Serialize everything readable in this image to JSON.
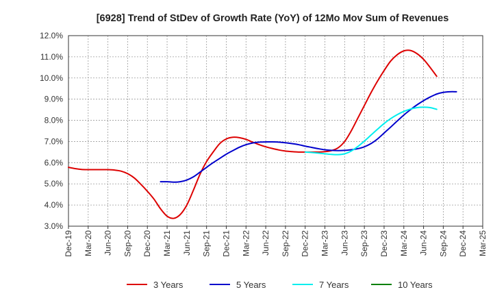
{
  "chart_data": {
    "type": "line",
    "title": "[6928]  Trend of StDev of Growth Rate (YoY) of 12Mo Mov Sum of Revenues",
    "xlabel": "",
    "ylabel": "",
    "ylim": [
      3.0,
      12.0
    ],
    "y_ticks": [
      3.0,
      4.0,
      5.0,
      6.0,
      7.0,
      8.0,
      9.0,
      10.0,
      11.0,
      12.0
    ],
    "y_tick_labels": [
      "3.0%",
      "4.0%",
      "5.0%",
      "6.0%",
      "7.0%",
      "8.0%",
      "9.0%",
      "10.0%",
      "11.0%",
      "12.0%"
    ],
    "x_tick_labels": [
      "Dec-19",
      "Mar-20",
      "Jun-20",
      "Sep-20",
      "Dec-20",
      "Mar-21",
      "Jun-21",
      "Sep-21",
      "Dec-21",
      "Mar-22",
      "Jun-22",
      "Sep-22",
      "Dec-22",
      "Mar-23",
      "Jun-23",
      "Sep-23",
      "Dec-23",
      "Mar-24",
      "Jun-24",
      "Sep-24",
      "Dec-24",
      "Mar-25"
    ],
    "grid": true,
    "legend_position": "bottom",
    "series": [
      {
        "name": "3 Years",
        "color": "#dd0000",
        "start_index": 0,
        "values": [
          5.78,
          5.72,
          5.68,
          5.67,
          5.67,
          5.67,
          5.67,
          5.65,
          5.6,
          5.48,
          5.28,
          4.98,
          4.65,
          4.28,
          3.82,
          3.47,
          3.37,
          3.55,
          4.0,
          4.7,
          5.45,
          6.05,
          6.5,
          6.9,
          7.12,
          7.2,
          7.18,
          7.1,
          6.97,
          6.85,
          6.75,
          6.67,
          6.6,
          6.55,
          6.52,
          6.5,
          6.5,
          6.5,
          6.5,
          6.52,
          6.57,
          6.7,
          7.0,
          7.5,
          8.1,
          8.7,
          9.3,
          9.85,
          10.35,
          10.8,
          11.1,
          11.28,
          11.3,
          11.15,
          10.88,
          10.5,
          10.08
        ]
      },
      {
        "name": "5 Years",
        "color": "#0000cc",
        "start_index": 14,
        "values": [
          5.1,
          5.1,
          5.08,
          5.1,
          5.18,
          5.33,
          5.55,
          5.78,
          6.0,
          6.2,
          6.4,
          6.57,
          6.73,
          6.85,
          6.93,
          6.97,
          6.98,
          6.98,
          6.97,
          6.94,
          6.9,
          6.85,
          6.78,
          6.72,
          6.66,
          6.61,
          6.58,
          6.57,
          6.58,
          6.61,
          6.66,
          6.75,
          6.9,
          7.12,
          7.4,
          7.68,
          7.97,
          8.25,
          8.5,
          8.73,
          8.93,
          9.1,
          9.24,
          9.32,
          9.35,
          9.35
        ]
      },
      {
        "name": "7 Years",
        "color": "#00eeee",
        "start_index": 36,
        "values": [
          6.5,
          6.48,
          6.45,
          6.42,
          6.39,
          6.38,
          6.42,
          6.55,
          6.76,
          7.02,
          7.3,
          7.58,
          7.85,
          8.08,
          8.27,
          8.42,
          8.53,
          8.6,
          8.62,
          8.6,
          8.52
        ]
      },
      {
        "name": "10 Years",
        "color": "#008000",
        "start_index": 0,
        "values": []
      }
    ]
  }
}
